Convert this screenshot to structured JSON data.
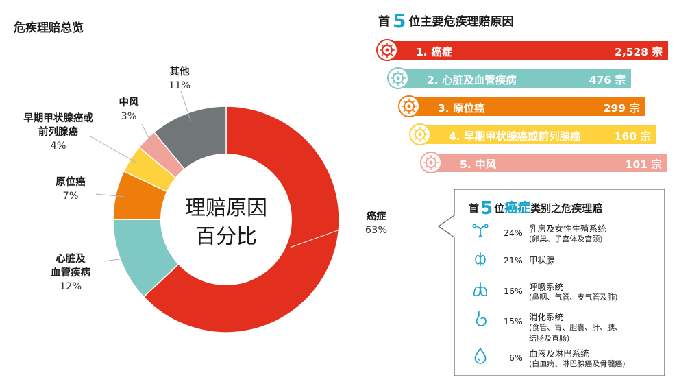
{
  "left_title": "危疾理赔总览",
  "center_label": [
    "理赔原因",
    "百分比"
  ],
  "right_title": {
    "prefix": "首",
    "num": "5",
    "suffix": "位主要危疾理赔原因"
  },
  "ranking": [
    {
      "label": "1. 癌症",
      "count": "2,528 宗",
      "color": "#e3301e"
    },
    {
      "label": "2. 心脏及血管疾病",
      "count": "476 宗",
      "color": "#7ec9c4"
    },
    {
      "label": "3. 原位癌",
      "count": "299 宗",
      "color": "#ef7d0b"
    },
    {
      "label": "4. 早期甲状腺癌或前列腺癌",
      "count": "160 宗",
      "color": "#fdd23c"
    },
    {
      "label": "5. 中风",
      "count": "101 宗",
      "color": "#f1a39a"
    }
  ],
  "box": {
    "prefix": "首",
    "num": "5",
    "mid": "位",
    "highlight": "癌症",
    "suffix": "类别之危疾理赔"
  },
  "systems": [
    {
      "pct": "24%",
      "name": "乳房及女性生殖系统",
      "sub": "(卵巢、子宫体及宫颈)",
      "icon": "uterus-icon"
    },
    {
      "pct": "21%",
      "name": "甲状腺",
      "sub": "",
      "icon": "thyroid-icon"
    },
    {
      "pct": "16%",
      "name": "呼吸系统",
      "sub": "(鼻咽、气管、支气管及肺)",
      "icon": "lungs-icon"
    },
    {
      "pct": "15%",
      "name": "消化系统",
      "sub": "(食管、胃、胆囊、肝、胰、",
      "sub2": "结肠及直肠)",
      "icon": "stomach-icon"
    },
    {
      "pct": "6%",
      "name": "血液及淋巴系统",
      "sub": "(白血病、淋巴腺癌及骨髓癌)",
      "icon": "blood-drop-icon"
    }
  ],
  "chart_data": {
    "type": "pie",
    "title": "危疾理赔总览",
    "categories": [
      "癌症",
      "心脏及血管疾病",
      "原位癌",
      "早期甲状腺癌或前列腺癌",
      "中风",
      "其他"
    ],
    "values": [
      63,
      12,
      7,
      4,
      3,
      11
    ],
    "unit": "%",
    "colors": [
      "#e3301e",
      "#7ec9c4",
      "#ef7d0b",
      "#fdd23c",
      "#f1a39a",
      "#717779"
    ],
    "labels": [
      {
        "name": "癌症",
        "pct": "63%"
      },
      {
        "name": "心脏及\n血管疾病",
        "pct": "12%"
      },
      {
        "name": "原位癌",
        "pct": "7%"
      },
      {
        "name": "早期甲状腺癌或\n前列腺癌",
        "pct": "4%"
      },
      {
        "name": "中风",
        "pct": "3%"
      },
      {
        "name": "其他",
        "pct": "11%"
      }
    ]
  }
}
